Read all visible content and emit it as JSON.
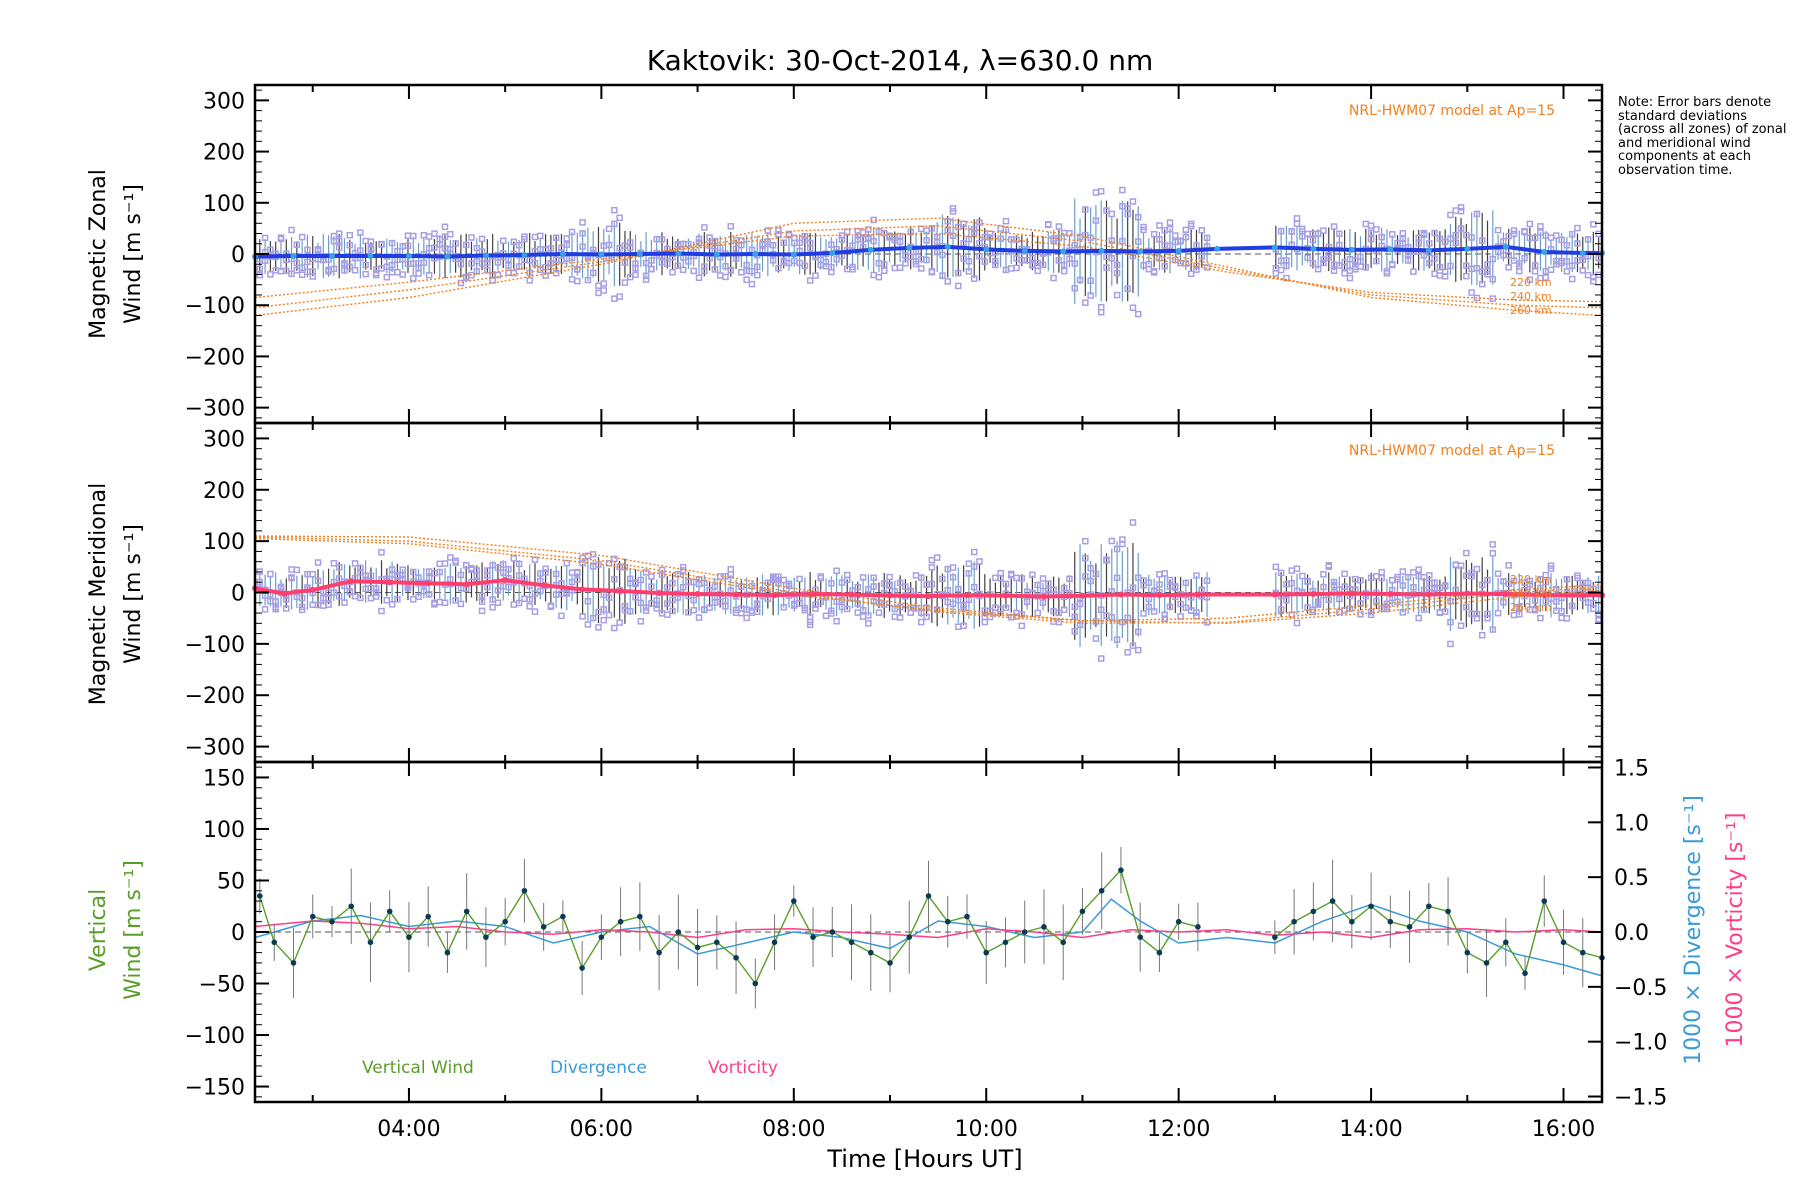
{
  "figure": {
    "title": "Kaktovik: 30-Oct-2014, λ=630.0 nm",
    "note": "Note: Error bars denote standard deviations (across all zones) of zonal and meridional wind components at each observation time.",
    "xlabel": "Time [Hours UT]"
  },
  "panels": {
    "zonal": {
      "ylabel_line1": "Magnetic Zonal",
      "ylabel_line2": "Wind [m s⁻¹]",
      "model_label": "NRL-HWM07 model at Ap=15",
      "model_alt_labels": [
        "220 km",
        "240 km",
        "260 km"
      ]
    },
    "meridional": {
      "ylabel_line1": "Magnetic Meridional",
      "ylabel_line2": "Wind [m s⁻¹]",
      "model_label": "NRL-HWM07 model at Ap=15",
      "model_alt_labels": [
        "220 km",
        "240 km",
        "260 km"
      ]
    },
    "vertical": {
      "ylabel_line1": "Vertical",
      "ylabel_line2": "Wind [m s⁻¹]",
      "right_label_div": "1000 × Divergence [s⁻¹]",
      "right_label_vort": "1000 × Vorticity [s⁻¹]",
      "legend": [
        "Vertical Wind",
        "Divergence",
        "Vorticity"
      ]
    }
  },
  "colors": {
    "zonal_line": "#1f3de0",
    "zonal_dots": "#3aa0e8",
    "meridional_line": "#ff3d6e",
    "model": "#f08020",
    "scatter": "#a89ee6",
    "vertical": "#5a9e2a",
    "divergence": "#3a9bd8",
    "vorticity": "#ff3d8b",
    "errorbar": "#404040",
    "dots": "#0b3b52"
  },
  "chart_data": [
    {
      "type": "line",
      "title": "Kaktovik: 30-Oct-2014, λ=630.0 nm",
      "ylabel": "Magnetic Zonal Wind [m s⁻¹]",
      "xlabel": "",
      "xlim": [
        2.4,
        16.4
      ],
      "ylim": [
        -330,
        330
      ],
      "xticks": [
        "04:00",
        "06:00",
        "08:00",
        "10:00",
        "12:00",
        "14:00",
        "16:00"
      ],
      "yticks": [
        -300,
        -200,
        -100,
        0,
        100,
        200,
        300
      ],
      "series": [
        {
          "name": "",
          "x": [
            2.4,
            2.8,
            3.2,
            3.6,
            4.0,
            4.4,
            4.8,
            5.2,
            5.6,
            6.0,
            6.4,
            6.8,
            7.2,
            7.6,
            8.0,
            8.4,
            8.8,
            9.2,
            9.6,
            10.0,
            10.4,
            10.8,
            11.2,
            11.6,
            12.0,
            12.4,
            13.0,
            13.4,
            13.8,
            14.2,
            14.6,
            15.0,
            15.4,
            15.8,
            16.2,
            16.4
          ],
          "y": [
            -5,
            -4,
            -4,
            -4,
            -4,
            -5,
            -3,
            -2,
            0,
            -1,
            0,
            1,
            -1,
            0,
            -1,
            2,
            8,
            12,
            14,
            9,
            6,
            5,
            6,
            5,
            6,
            10,
            13,
            10,
            8,
            9,
            7,
            10,
            14,
            4,
            2,
            2
          ]
        }
      ],
      "model": [
        {
          "name": "220 km",
          "x": [
            2.4,
            4,
            6,
            8,
            9.5,
            11,
            12.5,
            14,
            15.5,
            16.4
          ],
          "y": [
            -85,
            -55,
            -10,
            35,
            40,
            15,
            -35,
            -75,
            -90,
            -93
          ]
        },
        {
          "name": "240 km",
          "x": [
            2.4,
            4,
            6,
            8,
            9.5,
            11,
            12.5,
            14,
            15.5,
            16.4
          ],
          "y": [
            -105,
            -70,
            -15,
            45,
            55,
            25,
            -30,
            -80,
            -100,
            -105
          ]
        },
        {
          "name": "260 km",
          "x": [
            2.4,
            4,
            6,
            8,
            9.5,
            11,
            12.5,
            14,
            15.5,
            16.4
          ],
          "y": [
            -120,
            -85,
            -20,
            60,
            70,
            35,
            -25,
            -85,
            -110,
            -120
          ]
        }
      ]
    },
    {
      "type": "line",
      "ylabel": "Magnetic Meridional Wind [m s⁻¹]",
      "xlim": [
        2.4,
        16.4
      ],
      "ylim": [
        -330,
        330
      ],
      "yticks": [
        -300,
        -200,
        -100,
        0,
        100,
        200,
        300
      ],
      "series": [
        {
          "name": "",
          "x": [
            2.4,
            2.7,
            3.0,
            3.4,
            3.8,
            4.2,
            4.6,
            5.0,
            5.4,
            5.8,
            6.2,
            6.6,
            7.0,
            7.4,
            7.8,
            8.2,
            8.6,
            9.0,
            9.4,
            9.8,
            10.2,
            10.6,
            11.0,
            11.4,
            11.8,
            12.2,
            13.0,
            13.4,
            13.8,
            14.2,
            14.6,
            15.0,
            15.4,
            15.8,
            16.2,
            16.4
          ],
          "y": [
            8,
            -2,
            5,
            22,
            20,
            18,
            16,
            24,
            14,
            6,
            3,
            -1,
            -3,
            -4,
            -5,
            -3,
            -4,
            -6,
            -7,
            -5,
            -6,
            -8,
            -6,
            -4,
            -5,
            -4,
            -4,
            -3,
            -2,
            -3,
            -4,
            -2,
            -3,
            -5,
            -5,
            -5
          ]
        }
      ],
      "model": [
        {
          "name": "220 km",
          "x": [
            2.4,
            4,
            6,
            8,
            9.5,
            11,
            12.5,
            14,
            15.5,
            16.4
          ],
          "y": [
            105,
            95,
            55,
            -5,
            -35,
            -55,
            -50,
            -25,
            5,
            15
          ]
        },
        {
          "name": "240 km",
          "x": [
            2.4,
            4,
            6,
            8,
            9.5,
            11,
            12.5,
            14,
            15.5,
            16.4
          ],
          "y": [
            108,
            100,
            62,
            0,
            -38,
            -60,
            -58,
            -32,
            0,
            10
          ]
        },
        {
          "name": "260 km",
          "x": [
            2.4,
            4,
            6,
            8,
            9.5,
            11,
            12.5,
            14,
            15.5,
            16.4
          ],
          "y": [
            110,
            108,
            72,
            8,
            -30,
            -55,
            -60,
            -40,
            -8,
            5
          ]
        }
      ]
    },
    {
      "type": "line",
      "ylabel": "Vertical Wind [m s⁻¹]",
      "y2label": "1000 × Divergence [s⁻¹] / 1000 × Vorticity [s⁻¹]",
      "xlim": [
        2.4,
        16.4
      ],
      "ylim": [
        -165,
        165
      ],
      "y2lim": [
        -1.55,
        1.55
      ],
      "yticks": [
        -150,
        -100,
        -50,
        0,
        50,
        100,
        150
      ],
      "y2ticks": [
        -1.5,
        -1.0,
        -0.5,
        0.0,
        0.5,
        1.0,
        1.5
      ],
      "series": [
        {
          "name": "Vertical Wind",
          "axis": "left",
          "x": [
            2.45,
            2.6,
            2.8,
            3.0,
            3.2,
            3.4,
            3.6,
            3.8,
            4.0,
            4.2,
            4.4,
            4.6,
            4.8,
            5.0,
            5.2,
            5.4,
            5.6,
            5.8,
            6.0,
            6.2,
            6.4,
            6.6,
            6.8,
            7.0,
            7.2,
            7.4,
            7.6,
            7.8,
            8.0,
            8.2,
            8.4,
            8.6,
            8.8,
            9.0,
            9.2,
            9.4,
            9.6,
            9.8,
            10.0,
            10.2,
            10.4,
            10.6,
            10.8,
            11.0,
            11.2,
            11.4,
            11.6,
            11.8,
            12.0,
            12.2
          ],
          "y": [
            35,
            -10,
            -30,
            15,
            10,
            25,
            -10,
            20,
            -5,
            15,
            -20,
            20,
            -5,
            10,
            40,
            5,
            15,
            -35,
            -5,
            10,
            15,
            -20,
            0,
            -15,
            -10,
            -25,
            -50,
            -10,
            30,
            -5,
            0,
            -10,
            -20,
            -30,
            -5,
            35,
            10,
            15,
            -20,
            -10,
            0,
            5,
            -10,
            20,
            40,
            60,
            -5,
            -20,
            10,
            5
          ]
        },
        {
          "name": "Vertical Wind (2)",
          "axis": "left",
          "x": [
            13.0,
            13.2,
            13.4,
            13.6,
            13.8,
            14.0,
            14.2,
            14.4,
            14.6,
            14.8,
            15.0,
            15.2,
            15.4,
            15.6,
            15.8,
            16.0,
            16.2,
            16.4
          ],
          "y": [
            -5,
            10,
            20,
            30,
            10,
            25,
            10,
            5,
            25,
            20,
            -20,
            -30,
            -10,
            -40,
            30,
            -10,
            -20,
            -25
          ]
        },
        {
          "name": "Divergence",
          "axis": "right",
          "x": [
            2.4,
            3.0,
            3.5,
            4.0,
            4.5,
            5.0,
            5.5,
            6.0,
            6.5,
            7.0,
            7.5,
            8.0,
            8.5,
            9.0,
            9.5,
            10.0,
            10.5,
            11.0,
            11.3,
            11.6,
            12.0,
            12.5,
            13.0,
            13.5,
            14.0,
            14.5,
            15.0,
            15.5,
            16.0,
            16.4
          ],
          "y": [
            -0.05,
            0.1,
            0.15,
            0.05,
            0.1,
            0.05,
            -0.1,
            0.0,
            0.05,
            -0.2,
            -0.1,
            0.0,
            -0.05,
            -0.15,
            0.1,
            0.05,
            -0.05,
            0.0,
            0.3,
            0.1,
            -0.1,
            -0.05,
            -0.1,
            0.1,
            0.25,
            0.1,
            0.0,
            -0.2,
            -0.3,
            -0.4
          ]
        },
        {
          "name": "Vorticity",
          "axis": "right",
          "x": [
            2.4,
            3.0,
            3.5,
            4.0,
            4.5,
            5.0,
            5.5,
            6.0,
            6.5,
            7.0,
            7.5,
            8.0,
            8.5,
            9.0,
            9.5,
            10.0,
            10.5,
            11.0,
            11.5,
            12.0,
            12.5,
            13.0,
            13.5,
            14.0,
            14.5,
            15.0,
            15.5,
            16.0,
            16.4
          ],
          "y": [
            0.05,
            0.1,
            0.08,
            0.03,
            0.05,
            0.0,
            -0.02,
            0.02,
            0.0,
            -0.05,
            0.02,
            0.03,
            0.0,
            -0.02,
            -0.05,
            0.03,
            0.0,
            -0.05,
            0.02,
            0.0,
            0.02,
            -0.03,
            0.0,
            -0.05,
            0.02,
            0.03,
            0.0,
            0.02,
            0.0
          ]
        }
      ]
    }
  ]
}
